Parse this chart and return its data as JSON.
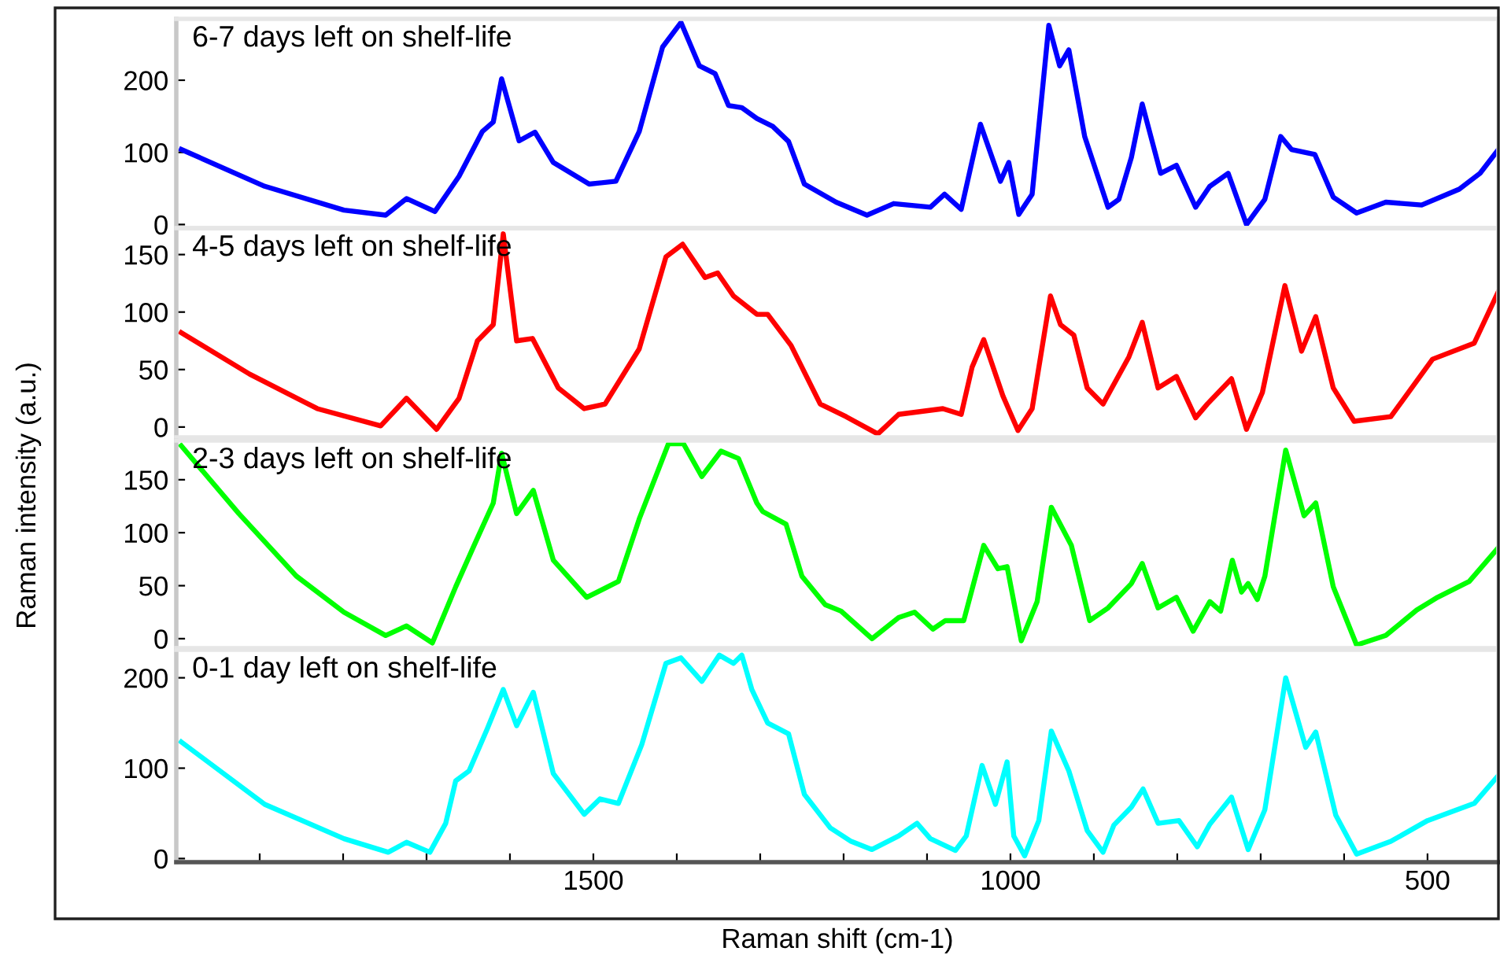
{
  "chart_data": [
    {
      "type": "line",
      "title": "6-7 days left on shelf-life",
      "ylabel": "Raman intensity (a.u.)",
      "tick_labels": "y",
      "xlim": [
        2000,
        415
      ],
      "ylim": [
        -5,
        285
      ],
      "yticks": [
        0,
        100,
        200
      ],
      "x": [
        1994,
        1894,
        1799,
        1749,
        1724,
        1690,
        1661,
        1633,
        1620,
        1610,
        1589,
        1570,
        1548,
        1505,
        1473,
        1445,
        1417,
        1395,
        1373,
        1354,
        1338,
        1322,
        1304,
        1285,
        1266,
        1247,
        1209,
        1172,
        1140,
        1096,
        1079,
        1059,
        1036,
        1012,
        1002,
        990,
        974,
        954,
        941,
        930,
        911,
        883,
        870,
        855,
        842,
        820,
        801,
        778,
        761,
        739,
        717,
        695,
        676,
        663,
        635,
        613,
        585,
        550,
        507,
        462,
        437,
        415
      ],
      "series": [
        {
          "color": "#0000ff",
          "values": [
            104,
            53,
            20,
            13,
            36,
            18,
            67,
            129,
            142,
            202,
            116,
            128,
            86,
            56,
            60,
            129,
            246,
            280,
            220,
            209,
            165,
            162,
            147,
            136,
            115,
            56,
            31,
            13,
            29,
            24,
            42,
            21,
            139,
            60,
            86,
            14,
            42,
            276,
            220,
            242,
            122,
            24,
            35,
            93,
            167,
            71,
            82,
            24,
            53,
            71,
            0,
            35,
            122,
            104,
            97,
            38,
            16,
            31,
            27,
            49,
            71,
            104
          ]
        }
      ]
    },
    {
      "type": "line",
      "title": "4-5 days left on shelf-life",
      "tick_labels": "y",
      "xlim": [
        2000,
        415
      ],
      "ylim": [
        -9,
        173
      ],
      "yticks": [
        0,
        50,
        100,
        150
      ],
      "x": [
        1994,
        1912,
        1831,
        1755,
        1724,
        1688,
        1661,
        1639,
        1620,
        1608,
        1592,
        1573,
        1542,
        1511,
        1486,
        1445,
        1413,
        1393,
        1366,
        1351,
        1332,
        1304,
        1291,
        1263,
        1228,
        1197,
        1159,
        1134,
        1081,
        1059,
        1046,
        1032,
        1009,
        991,
        974,
        952,
        940,
        924,
        908,
        889,
        858,
        842,
        823,
        801,
        778,
        764,
        735,
        717,
        698,
        671,
        651,
        634,
        613,
        588,
        544,
        494,
        444,
        415
      ],
      "series": [
        {
          "color": "#ff0000",
          "values": [
            82,
            46,
            16,
            1,
            25,
            -2,
            25,
            75,
            89,
            168,
            75,
            77,
            34,
            16,
            20,
            68,
            148,
            159,
            130,
            134,
            114,
            98,
            98,
            71,
            20,
            9,
            -6,
            11,
            16,
            11,
            52,
            76,
            27,
            -3,
            16,
            114,
            89,
            80,
            34,
            20,
            61,
            91,
            34,
            44,
            8,
            20,
            42,
            -2,
            30,
            123,
            66,
            96,
            34,
            5,
            9,
            59,
            73,
            118
          ]
        }
      ]
    },
    {
      "type": "line",
      "title": "2-3 days left on shelf-life",
      "tick_labels": "y",
      "xlim": [
        2000,
        415
      ],
      "ylim": [
        -9,
        187
      ],
      "yticks": [
        0,
        50,
        100,
        150
      ],
      "x": [
        1994,
        1925,
        1856,
        1799,
        1749,
        1724,
        1693,
        1665,
        1643,
        1620,
        1610,
        1592,
        1572,
        1548,
        1508,
        1470,
        1445,
        1410,
        1392,
        1370,
        1347,
        1326,
        1304,
        1297,
        1269,
        1250,
        1222,
        1203,
        1166,
        1134,
        1115,
        1093,
        1078,
        1056,
        1032,
        1015,
        1004,
        987,
        968,
        951,
        927,
        905,
        883,
        855,
        842,
        823,
        801,
        781,
        761,
        748,
        734,
        723,
        715,
        704,
        695,
        670,
        648,
        634,
        613,
        585,
        550,
        513,
        488,
        450,
        415
      ],
      "series": [
        {
          "color": "#00ff00",
          "values": [
            182,
            118,
            59,
            25,
            3,
            12,
            -4,
            49,
            88,
            128,
            175,
            118,
            140,
            74,
            39,
            54,
            113,
            184,
            184,
            153,
            177,
            170,
            128,
            120,
            108,
            59,
            32,
            26,
            0,
            20,
            25,
            9,
            17,
            17,
            88,
            66,
            68,
            -2,
            35,
            124,
            88,
            17,
            29,
            52,
            71,
            29,
            39,
            7,
            35,
            26,
            74,
            44,
            52,
            37,
            59,
            178,
            116,
            128,
            49,
            -6,
            3,
            27,
            39,
            54,
            86
          ]
        }
      ]
    },
    {
      "type": "line",
      "title": "0-1 day left on shelf-life",
      "xlabel": "Raman shift (cm-1)",
      "xlim": [
        2000,
        415
      ],
      "ylim": [
        -4,
        231
      ],
      "yticks": [
        0,
        100,
        200
      ],
      "xticks": [
        {
          "value": 1900,
          "label": null
        },
        {
          "value": 1800,
          "label": null
        },
        {
          "value": 1700,
          "label": null
        },
        {
          "value": 1600,
          "label": null
        },
        1500,
        {
          "value": 1400,
          "label": null
        },
        {
          "value": 1300,
          "label": null
        },
        {
          "value": 1200,
          "label": null
        },
        {
          "value": 1100,
          "label": null
        },
        1000,
        {
          "value": 900,
          "label": null
        },
        {
          "value": 800,
          "label": null
        },
        {
          "value": 700,
          "label": null
        },
        {
          "value": 600,
          "label": null
        },
        500
      ],
      "x": [
        1994,
        1894,
        1799,
        1746,
        1724,
        1696,
        1677,
        1665,
        1649,
        1627,
        1608,
        1592,
        1572,
        1548,
        1511,
        1492,
        1470,
        1442,
        1413,
        1395,
        1370,
        1349,
        1332,
        1322,
        1310,
        1291,
        1266,
        1247,
        1216,
        1191,
        1166,
        1134,
        1112,
        1096,
        1066,
        1053,
        1034,
        1018,
        1004,
        996,
        983,
        966,
        951,
        930,
        908,
        889,
        876,
        855,
        841,
        823,
        798,
        776,
        761,
        735,
        715,
        695,
        670,
        646,
        634,
        610,
        585,
        544,
        500,
        444,
        415
      ],
      "series": [
        {
          "color": "#00ffff",
          "values": [
            129,
            60,
            22,
            7,
            18,
            7,
            39,
            86,
            97,
            144,
            187,
            147,
            184,
            94,
            49,
            66,
            61,
            126,
            216,
            222,
            196,
            225,
            216,
            225,
            187,
            150,
            138,
            71,
            34,
            19,
            10,
            25,
            39,
            22,
            9,
            25,
            103,
            60,
            107,
            25,
            3,
            42,
            141,
            97,
            31,
            7,
            37,
            57,
            77,
            39,
            42,
            13,
            38,
            68,
            10,
            54,
            200,
            123,
            140,
            48,
            5,
            19,
            42,
            61,
            92
          ]
        }
      ]
    }
  ]
}
